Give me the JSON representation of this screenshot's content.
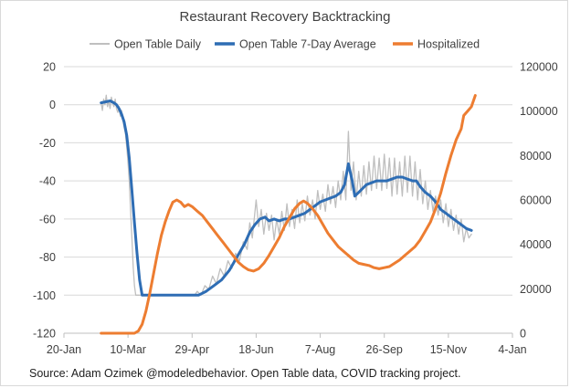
{
  "chart_data": {
    "type": "line",
    "title": "Restaurant Recovery Backtracking",
    "source": "Source: Adam Ozimek @modeledbehavior. Open Table data, COVID tracking project.",
    "legend_position": "top",
    "grid": {
      "horizontal": true,
      "vertical": false
    },
    "x_axis": {
      "type": "date",
      "range": [
        "2020-01-20",
        "2021-01-04"
      ],
      "tick_labels": [
        "20-Jan",
        "10-Mar",
        "29-Apr",
        "18-Jun",
        "7-Aug",
        "26-Sep",
        "15-Nov",
        "4-Jan"
      ]
    },
    "y_axis_left": {
      "range": [
        -120,
        20
      ],
      "tick_labels": [
        "20",
        "0",
        "-20",
        "-40",
        "-60",
        "-80",
        "-100",
        "-120"
      ]
    },
    "y_axis_right": {
      "range": [
        0,
        120000
      ],
      "tick_labels": [
        "120000",
        "100000",
        "80000",
        "60000",
        "40000",
        "20000",
        "0"
      ]
    },
    "series": [
      {
        "name": "Open Table Daily",
        "axis": "left",
        "color": "#bfbfbf",
        "points": [
          [
            "2020-02-18",
            1
          ],
          [
            "2020-02-19",
            -3
          ],
          [
            "2020-02-20",
            3
          ],
          [
            "2020-02-21",
            0
          ],
          [
            "2020-02-22",
            5
          ],
          [
            "2020-02-23",
            -1
          ],
          [
            "2020-02-24",
            2
          ],
          [
            "2020-02-25",
            -2
          ],
          [
            "2020-02-26",
            4
          ],
          [
            "2020-02-27",
            1
          ],
          [
            "2020-02-28",
            -1
          ],
          [
            "2020-02-29",
            3
          ],
          [
            "2020-03-01",
            -2
          ],
          [
            "2020-03-02",
            -4
          ],
          [
            "2020-03-03",
            -1
          ],
          [
            "2020-03-04",
            -6
          ],
          [
            "2020-03-05",
            -3
          ],
          [
            "2020-03-06",
            -8
          ],
          [
            "2020-03-07",
            -12
          ],
          [
            "2020-03-08",
            -15
          ],
          [
            "2020-03-09",
            -22
          ],
          [
            "2020-03-10",
            -30
          ],
          [
            "2020-03-11",
            -40
          ],
          [
            "2020-03-12",
            -55
          ],
          [
            "2020-03-13",
            -70
          ],
          [
            "2020-03-14",
            -85
          ],
          [
            "2020-03-15",
            -95
          ],
          [
            "2020-03-16",
            -100
          ],
          [
            "2020-05-01",
            -100
          ],
          [
            "2020-05-03",
            -98
          ],
          [
            "2020-05-06",
            -100
          ],
          [
            "2020-05-09",
            -95
          ],
          [
            "2020-05-12",
            -97
          ],
          [
            "2020-05-15",
            -90
          ],
          [
            "2020-05-18",
            -94
          ],
          [
            "2020-05-21",
            -86
          ],
          [
            "2020-05-24",
            -90
          ],
          [
            "2020-05-27",
            -82
          ],
          [
            "2020-05-30",
            -86
          ],
          [
            "2020-06-02",
            -78
          ],
          [
            "2020-06-05",
            -82
          ],
          [
            "2020-06-08",
            -72
          ],
          [
            "2020-06-11",
            -76
          ],
          [
            "2020-06-13",
            -62
          ],
          [
            "2020-06-15",
            -70
          ],
          [
            "2020-06-18",
            -50
          ],
          [
            "2020-06-20",
            -64
          ],
          [
            "2020-06-22",
            -55
          ],
          [
            "2020-06-24",
            -68
          ],
          [
            "2020-06-26",
            -57
          ],
          [
            "2020-06-28",
            -66
          ],
          [
            "2020-06-30",
            -58
          ],
          [
            "2020-07-02",
            -71
          ],
          [
            "2020-07-04",
            -60
          ],
          [
            "2020-07-06",
            -68
          ],
          [
            "2020-07-08",
            -56
          ],
          [
            "2020-07-10",
            -66
          ],
          [
            "2020-07-12",
            -52
          ],
          [
            "2020-07-14",
            -64
          ],
          [
            "2020-07-16",
            -55
          ],
          [
            "2020-07-18",
            -65
          ],
          [
            "2020-07-20",
            -50
          ],
          [
            "2020-07-22",
            -62
          ],
          [
            "2020-07-24",
            -52
          ],
          [
            "2020-07-26",
            -61
          ],
          [
            "2020-07-28",
            -48
          ],
          [
            "2020-07-30",
            -58
          ],
          [
            "2020-08-01",
            -50
          ],
          [
            "2020-08-03",
            -60
          ],
          [
            "2020-08-05",
            -45
          ],
          [
            "2020-08-07",
            -55
          ],
          [
            "2020-08-09",
            -47
          ],
          [
            "2020-08-11",
            -56
          ],
          [
            "2020-08-13",
            -42
          ],
          [
            "2020-08-15",
            -52
          ],
          [
            "2020-08-17",
            -43
          ],
          [
            "2020-08-19",
            -54
          ],
          [
            "2020-08-21",
            -40
          ],
          [
            "2020-08-23",
            -50
          ],
          [
            "2020-08-25",
            -35
          ],
          [
            "2020-08-27",
            -50
          ],
          [
            "2020-08-29",
            -14
          ],
          [
            "2020-08-31",
            -45
          ],
          [
            "2020-09-02",
            -30
          ],
          [
            "2020-09-04",
            -50
          ],
          [
            "2020-09-06",
            -35
          ],
          [
            "2020-09-08",
            -48
          ],
          [
            "2020-09-10",
            -32
          ],
          [
            "2020-09-12",
            -47
          ],
          [
            "2020-09-14",
            -30
          ],
          [
            "2020-09-16",
            -45
          ],
          [
            "2020-09-18",
            -27
          ],
          [
            "2020-09-20",
            -44
          ],
          [
            "2020-09-22",
            -28
          ],
          [
            "2020-09-24",
            -45
          ],
          [
            "2020-09-26",
            -26
          ],
          [
            "2020-09-28",
            -44
          ],
          [
            "2020-09-30",
            -28
          ],
          [
            "2020-10-02",
            -48
          ],
          [
            "2020-10-04",
            -28
          ],
          [
            "2020-10-06",
            -47
          ],
          [
            "2020-10-08",
            -30
          ],
          [
            "2020-10-10",
            -48
          ],
          [
            "2020-10-12",
            -27
          ],
          [
            "2020-10-14",
            -46
          ],
          [
            "2020-10-16",
            -27
          ],
          [
            "2020-10-18",
            -48
          ],
          [
            "2020-10-20",
            -30
          ],
          [
            "2020-10-22",
            -50
          ],
          [
            "2020-10-24",
            -34
          ],
          [
            "2020-10-26",
            -52
          ],
          [
            "2020-10-28",
            -40
          ],
          [
            "2020-10-30",
            -55
          ],
          [
            "2020-11-01",
            -45
          ],
          [
            "2020-11-03",
            -56
          ],
          [
            "2020-11-05",
            -48
          ],
          [
            "2020-11-07",
            -58
          ],
          [
            "2020-11-09",
            -50
          ],
          [
            "2020-11-11",
            -62
          ],
          [
            "2020-11-13",
            -52
          ],
          [
            "2020-11-15",
            -64
          ],
          [
            "2020-11-17",
            -55
          ],
          [
            "2020-11-19",
            -66
          ],
          [
            "2020-11-21",
            -58
          ],
          [
            "2020-11-23",
            -68
          ],
          [
            "2020-11-25",
            -60
          ],
          [
            "2020-11-27",
            -72
          ],
          [
            "2020-11-29",
            -65
          ],
          [
            "2020-12-01",
            -70
          ],
          [
            "2020-12-03",
            -68
          ]
        ]
      },
      {
        "name": "Open Table 7-Day Average",
        "axis": "left",
        "color": "#2e6db4",
        "points": [
          [
            "2020-02-18",
            1
          ],
          [
            "2020-02-25",
            2
          ],
          [
            "2020-02-28",
            1
          ],
          [
            "2020-03-01",
            0
          ],
          [
            "2020-03-03",
            -2
          ],
          [
            "2020-03-05",
            -5
          ],
          [
            "2020-03-07",
            -9
          ],
          [
            "2020-03-09",
            -16
          ],
          [
            "2020-03-11",
            -28
          ],
          [
            "2020-03-13",
            -45
          ],
          [
            "2020-03-15",
            -62
          ],
          [
            "2020-03-17",
            -78
          ],
          [
            "2020-03-19",
            -92
          ],
          [
            "2020-03-21",
            -100
          ],
          [
            "2020-05-04",
            -100
          ],
          [
            "2020-05-10",
            -98
          ],
          [
            "2020-05-16",
            -95
          ],
          [
            "2020-05-22",
            -92
          ],
          [
            "2020-05-28",
            -87
          ],
          [
            "2020-06-03",
            -80
          ],
          [
            "2020-06-09",
            -73
          ],
          [
            "2020-06-13",
            -67
          ],
          [
            "2020-06-17",
            -63
          ],
          [
            "2020-06-21",
            -60
          ],
          [
            "2020-06-25",
            -59
          ],
          [
            "2020-06-28",
            -61
          ],
          [
            "2020-07-02",
            -60
          ],
          [
            "2020-07-06",
            -61
          ],
          [
            "2020-07-10",
            -60
          ],
          [
            "2020-07-14",
            -60
          ],
          [
            "2020-07-18",
            -59
          ],
          [
            "2020-07-22",
            -58
          ],
          [
            "2020-07-26",
            -57
          ],
          [
            "2020-07-30",
            -55
          ],
          [
            "2020-08-03",
            -53
          ],
          [
            "2020-08-07",
            -51
          ],
          [
            "2020-08-11",
            -50
          ],
          [
            "2020-08-15",
            -49
          ],
          [
            "2020-08-19",
            -48
          ],
          [
            "2020-08-23",
            -46
          ],
          [
            "2020-08-26",
            -42
          ],
          [
            "2020-08-29",
            -31
          ],
          [
            "2020-09-01",
            -40
          ],
          [
            "2020-09-03",
            -48
          ],
          [
            "2020-09-06",
            -46
          ],
          [
            "2020-09-09",
            -44
          ],
          [
            "2020-09-12",
            -42
          ],
          [
            "2020-09-16",
            -41
          ],
          [
            "2020-09-20",
            -40
          ],
          [
            "2020-09-24",
            -40
          ],
          [
            "2020-09-28",
            -40
          ],
          [
            "2020-10-02",
            -39
          ],
          [
            "2020-10-06",
            -38
          ],
          [
            "2020-10-10",
            -38
          ],
          [
            "2020-10-14",
            -39
          ],
          [
            "2020-10-18",
            -40
          ],
          [
            "2020-10-21",
            -40
          ],
          [
            "2020-10-24",
            -43
          ],
          [
            "2020-10-28",
            -46
          ],
          [
            "2020-11-01",
            -48
          ],
          [
            "2020-11-05",
            -51
          ],
          [
            "2020-11-09",
            -55
          ],
          [
            "2020-11-13",
            -57
          ],
          [
            "2020-11-17",
            -59
          ],
          [
            "2020-11-21",
            -61
          ],
          [
            "2020-11-25",
            -63
          ],
          [
            "2020-11-29",
            -65
          ],
          [
            "2020-12-03",
            -66
          ]
        ]
      },
      {
        "name": "Hospitalized",
        "axis": "right",
        "color": "#ed7d31",
        "points": [
          [
            "2020-02-18",
            0
          ],
          [
            "2020-03-15",
            0
          ],
          [
            "2020-03-18",
            1000
          ],
          [
            "2020-03-21",
            4000
          ],
          [
            "2020-03-24",
            10000
          ],
          [
            "2020-03-27",
            18000
          ],
          [
            "2020-03-30",
            27000
          ],
          [
            "2020-04-02",
            36000
          ],
          [
            "2020-04-05",
            44000
          ],
          [
            "2020-04-08",
            50000
          ],
          [
            "2020-04-11",
            55000
          ],
          [
            "2020-04-14",
            59000
          ],
          [
            "2020-04-17",
            60000
          ],
          [
            "2020-04-20",
            59000
          ],
          [
            "2020-04-23",
            57000
          ],
          [
            "2020-04-26",
            58000
          ],
          [
            "2020-04-29",
            57000
          ],
          [
            "2020-05-03",
            55000
          ],
          [
            "2020-05-07",
            53000
          ],
          [
            "2020-05-11",
            50000
          ],
          [
            "2020-05-15",
            47000
          ],
          [
            "2020-05-19",
            44000
          ],
          [
            "2020-05-23",
            41000
          ],
          [
            "2020-05-27",
            38000
          ],
          [
            "2020-05-31",
            35000
          ],
          [
            "2020-06-04",
            32000
          ],
          [
            "2020-06-08",
            30000
          ],
          [
            "2020-06-12",
            28500
          ],
          [
            "2020-06-16",
            28000
          ],
          [
            "2020-06-20",
            29000
          ],
          [
            "2020-06-24",
            31500
          ],
          [
            "2020-06-28",
            35000
          ],
          [
            "2020-07-02",
            39000
          ],
          [
            "2020-07-06",
            43000
          ],
          [
            "2020-07-10",
            48000
          ],
          [
            "2020-07-14",
            52000
          ],
          [
            "2020-07-18",
            56000
          ],
          [
            "2020-07-22",
            58500
          ],
          [
            "2020-07-25",
            59500
          ],
          [
            "2020-07-28",
            58500
          ],
          [
            "2020-08-01",
            56000
          ],
          [
            "2020-08-05",
            53000
          ],
          [
            "2020-08-09",
            49000
          ],
          [
            "2020-08-13",
            45000
          ],
          [
            "2020-08-17",
            42000
          ],
          [
            "2020-08-21",
            39000
          ],
          [
            "2020-08-25",
            37000
          ],
          [
            "2020-08-29",
            35000
          ],
          [
            "2020-09-02",
            33000
          ],
          [
            "2020-09-06",
            31500
          ],
          [
            "2020-09-10",
            31000
          ],
          [
            "2020-09-14",
            30500
          ],
          [
            "2020-09-18",
            29500
          ],
          [
            "2020-09-22",
            29000
          ],
          [
            "2020-09-26",
            29500
          ],
          [
            "2020-09-30",
            30000
          ],
          [
            "2020-10-04",
            31500
          ],
          [
            "2020-10-08",
            33000
          ],
          [
            "2020-10-12",
            35000
          ],
          [
            "2020-10-16",
            37000
          ],
          [
            "2020-10-20",
            39000
          ],
          [
            "2020-10-24",
            42000
          ],
          [
            "2020-10-28",
            46000
          ],
          [
            "2020-11-01",
            50000
          ],
          [
            "2020-11-05",
            56000
          ],
          [
            "2020-11-09",
            63000
          ],
          [
            "2020-11-13",
            72000
          ],
          [
            "2020-11-17",
            80000
          ],
          [
            "2020-11-21",
            87000
          ],
          [
            "2020-11-25",
            92000
          ],
          [
            "2020-11-27",
            98000
          ],
          [
            "2020-11-30",
            100000
          ],
          [
            "2020-12-03",
            102000
          ],
          [
            "2020-12-06",
            107000
          ]
        ]
      }
    ]
  }
}
